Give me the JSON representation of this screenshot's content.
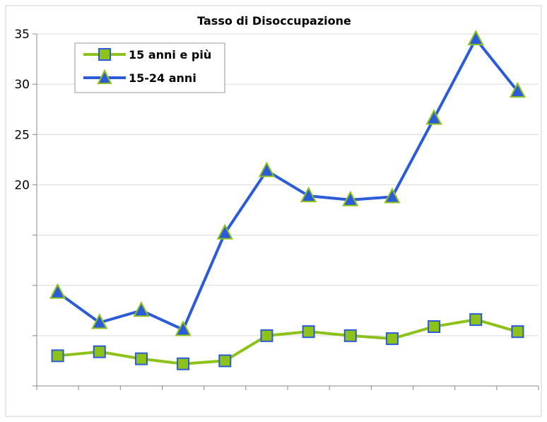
{
  "chart_data": {
    "type": "line",
    "title": "Tasso di Disoccupazione",
    "xlabel": "",
    "ylabel": "",
    "categories": [
      "",
      "",
      "",
      "",
      "",
      "",
      "",
      "",
      "",
      "",
      "",
      ""
    ],
    "ylim": [
      0,
      35
    ],
    "yticks": [
      0,
      5,
      10,
      15,
      20,
      25,
      30,
      35
    ],
    "ytick_labels": [
      "",
      "",
      "",
      "",
      "20",
      "25",
      "30",
      "35"
    ],
    "grid": true,
    "legend_position": "top-left",
    "series": [
      {
        "name": "15 anni e più",
        "marker": "square",
        "line_color": "#8CC21A",
        "marker_fill": "#8CC21A",
        "marker_stroke": "#2B5BD8",
        "values": [
          3.0,
          3.4,
          2.7,
          2.2,
          2.5,
          5.0,
          5.4,
          5.0,
          4.7,
          5.9,
          6.6,
          5.4
        ]
      },
      {
        "name": "15-24 anni",
        "marker": "triangle",
        "line_color": "#2B5BD8",
        "marker_fill": "#2B5BD8",
        "marker_stroke": "#8CC21A",
        "values": [
          9.3,
          6.3,
          7.5,
          5.6,
          15.2,
          21.4,
          18.9,
          18.5,
          18.8,
          26.6,
          34.5,
          29.3
        ]
      }
    ]
  }
}
